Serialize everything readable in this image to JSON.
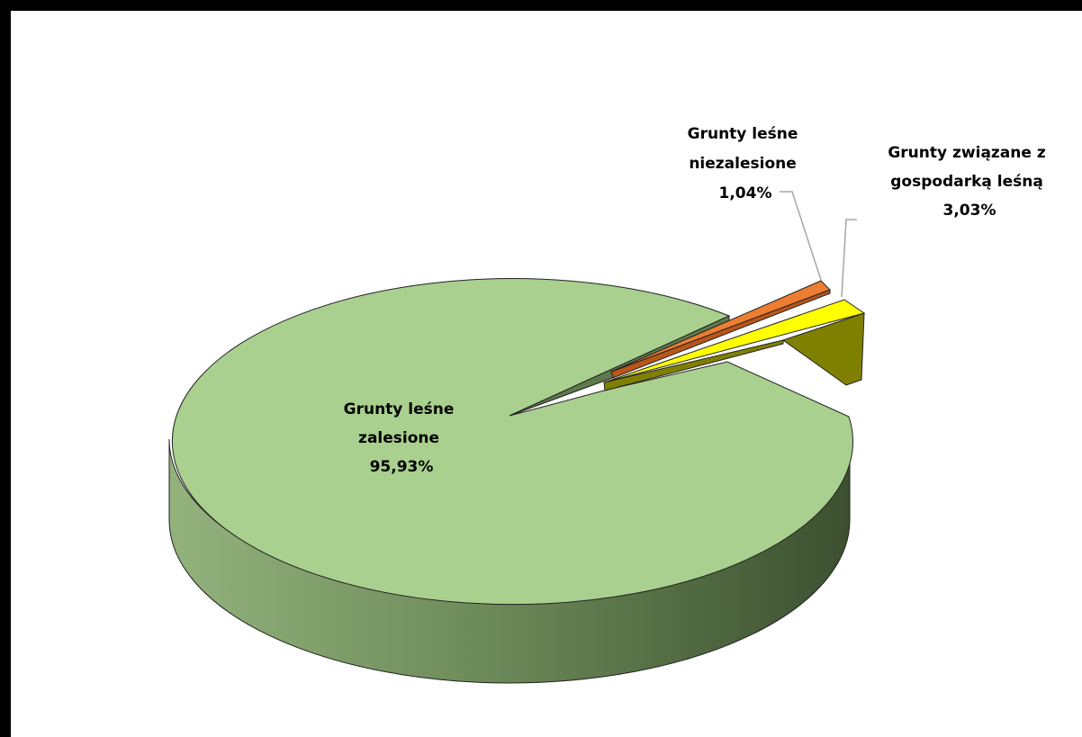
{
  "chart_data": {
    "type": "pie",
    "title": "",
    "slices": [
      {
        "name": "Grunty leśne zalesione",
        "label_lines": [
          "Grunty leśne",
          "zalesione",
          "95,93%"
        ],
        "value": 95.93,
        "color": "#a9d08e"
      },
      {
        "name": "Grunty leśne niezalesione",
        "label_lines": [
          "Grunty leśne",
          "niezalesione",
          "1,04%"
        ],
        "value": 1.04,
        "color": "#ed7d31"
      },
      {
        "name": "Grunty związane z gospodarką leśną",
        "label_lines": [
          "Grunty związane z",
          "gospodarką leśną",
          "3,03%"
        ],
        "value": 3.03,
        "color": "#ffff00"
      }
    ],
    "legend": "none",
    "style": "3d-exploded"
  }
}
